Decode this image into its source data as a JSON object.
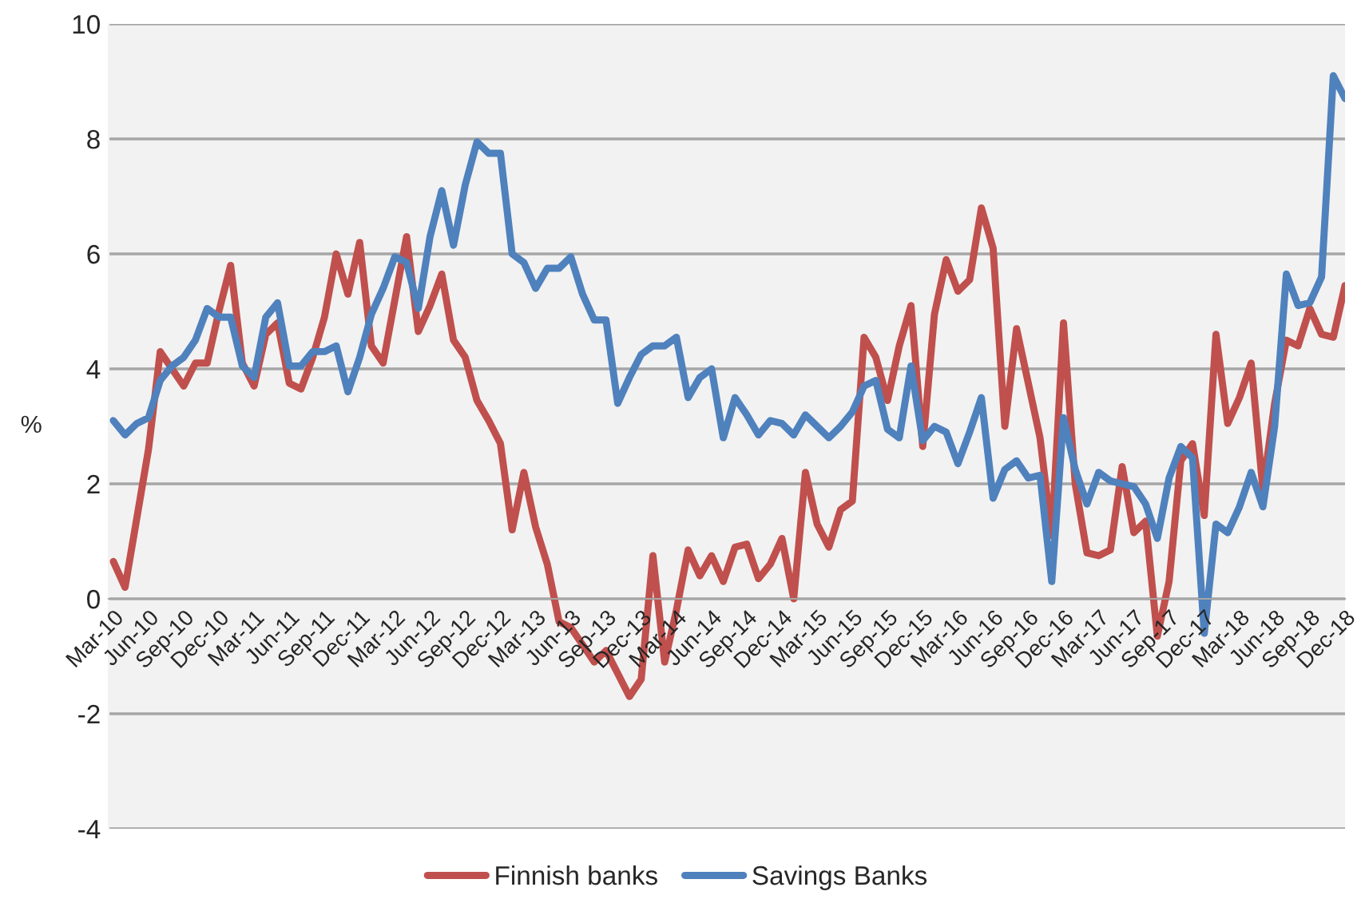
{
  "chart_data": {
    "type": "line",
    "ylabel": "%",
    "categories": [
      "Mar-10",
      null,
      null,
      "Jun-10",
      null,
      null,
      "Sep-10",
      null,
      null,
      "Dec-10",
      null,
      null,
      "Mar-11",
      null,
      null,
      "Jun-11",
      null,
      null,
      "Sep-11",
      null,
      null,
      "Dec-11",
      null,
      null,
      "Mar-12",
      null,
      null,
      "Jun-12",
      null,
      null,
      "Sep-12",
      null,
      null,
      "Dec-12",
      null,
      null,
      "Mar-13",
      null,
      null,
      "Jun-13",
      null,
      null,
      "Sep-13",
      null,
      null,
      "Dec-13",
      null,
      null,
      "Mar-14",
      null,
      null,
      "Jun-14",
      null,
      null,
      "Sep-14",
      null,
      null,
      "Dec-14",
      null,
      null,
      "Mar-15",
      null,
      null,
      "Jun-15",
      null,
      null,
      "Sep-15",
      null,
      null,
      "Dec-15",
      null,
      null,
      "Mar-16",
      null,
      null,
      "Jun-16",
      null,
      null,
      "Sep-16",
      null,
      null,
      "Dec-16",
      null,
      null,
      "Mar-17",
      null,
      null,
      "Jun-17",
      null,
      null,
      "Sep-17",
      null,
      null,
      "Dec-17",
      null,
      null,
      "Mar-18",
      null,
      null,
      "Jun-18",
      null,
      null,
      "Sep-18",
      null,
      null,
      "Dec-18"
    ],
    "series": [
      {
        "name": "Finnish banks",
        "color": "#c0504d",
        "values": [
          0.65,
          0.2,
          1.4,
          2.6,
          4.3,
          4.0,
          3.7,
          4.1,
          4.1,
          5.0,
          5.8,
          4.1,
          3.7,
          4.6,
          4.8,
          3.75,
          3.65,
          4.2,
          4.9,
          6.0,
          5.3,
          6.2,
          4.4,
          4.1,
          5.2,
          6.3,
          4.65,
          5.1,
          5.65,
          4.5,
          4.2,
          3.45,
          3.1,
          2.7,
          1.2,
          2.2,
          1.25,
          0.6,
          -0.4,
          -0.5,
          -0.8,
          -1.1,
          -0.9,
          -1.3,
          -1.7,
          -1.4,
          0.75,
          -1.1,
          -0.2,
          0.85,
          0.4,
          0.75,
          0.3,
          0.9,
          0.95,
          0.35,
          0.6,
          1.05,
          0.0,
          2.2,
          1.3,
          0.9,
          1.55,
          1.7,
          4.55,
          4.2,
          3.45,
          4.4,
          5.1,
          2.65,
          4.95,
          5.9,
          5.35,
          5.55,
          6.8,
          6.1,
          3.0,
          4.7,
          3.75,
          2.8,
          1.1,
          4.8,
          2.0,
          0.8,
          0.75,
          0.85,
          2.3,
          1.15,
          1.35,
          -0.65,
          0.3,
          2.4,
          2.7,
          1.45,
          4.6,
          3.05,
          3.5,
          4.1,
          1.9,
          3.4,
          4.5,
          4.4,
          5.05,
          4.6,
          4.55,
          5.45
        ]
      },
      {
        "name": "Savings Banks",
        "color": "#4f81bd",
        "values": [
          3.1,
          2.85,
          3.05,
          3.15,
          3.8,
          4.05,
          4.2,
          4.5,
          5.05,
          4.9,
          4.9,
          4.05,
          3.85,
          4.9,
          5.15,
          4.05,
          4.05,
          4.3,
          4.3,
          4.4,
          3.6,
          4.2,
          4.95,
          5.4,
          5.95,
          5.85,
          5.05,
          6.3,
          7.1,
          6.15,
          7.2,
          7.95,
          7.75,
          7.75,
          6.0,
          5.85,
          5.4,
          5.75,
          5.75,
          5.95,
          5.3,
          4.85,
          4.85,
          3.4,
          3.85,
          4.25,
          4.4,
          4.4,
          4.55,
          3.5,
          3.85,
          4.0,
          2.8,
          3.5,
          3.2,
          2.85,
          3.1,
          3.05,
          2.85,
          3.2,
          3.0,
          2.8,
          3.0,
          3.25,
          3.7,
          3.8,
          2.95,
          2.8,
          4.05,
          2.75,
          3.0,
          2.9,
          2.35,
          2.9,
          3.5,
          1.75,
          2.25,
          2.4,
          2.1,
          2.15,
          0.3,
          3.15,
          2.25,
          1.65,
          2.2,
          2.05,
          2.0,
          1.95,
          1.65,
          1.05,
          2.1,
          2.65,
          2.45,
          -0.6,
          1.3,
          1.15,
          1.6,
          2.2,
          1.6,
          3.0,
          5.65,
          5.1,
          5.15,
          5.6,
          9.1,
          8.7
        ]
      }
    ],
    "ylim": [
      -4,
      10
    ],
    "yticks": [
      -4,
      -2,
      0,
      2,
      4,
      6,
      8,
      10
    ],
    "grid": "y",
    "legend": "bottom",
    "marker": "none",
    "line_style": "solid"
  }
}
